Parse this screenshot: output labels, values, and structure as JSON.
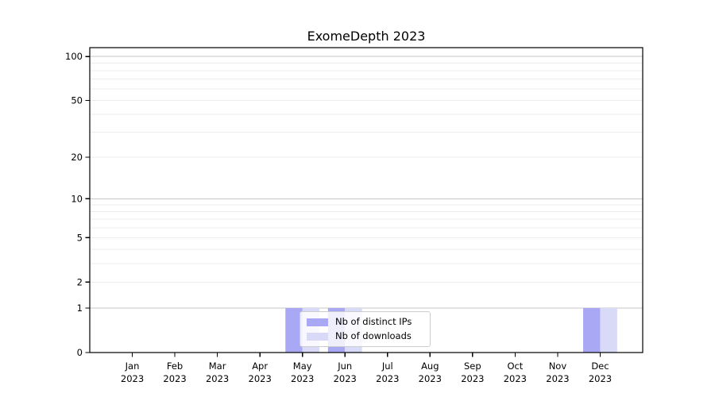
{
  "chart_data": {
    "type": "bar",
    "title": "ExomeDepth 2023",
    "categories": [
      "Jan",
      "Feb",
      "Mar",
      "Apr",
      "May",
      "Jun",
      "Jul",
      "Aug",
      "Sep",
      "Oct",
      "Nov",
      "Dec"
    ],
    "x_year_label": "2023",
    "series": [
      {
        "name": "Nb of distinct IPs",
        "color": "#a8a8f5",
        "values": [
          0,
          0,
          0,
          0,
          1,
          1,
          0,
          0,
          0,
          0,
          0,
          1
        ]
      },
      {
        "name": "Nb of downloads",
        "color": "#d9d9f8",
        "values": [
          0,
          0,
          0,
          0,
          1,
          1,
          0,
          0,
          0,
          0,
          0,
          1
        ]
      }
    ],
    "yticks": [
      0,
      1,
      2,
      5,
      10,
      20,
      50,
      100
    ],
    "minor_gridlines": [
      2,
      3,
      4,
      5,
      6,
      7,
      8,
      9,
      20,
      30,
      40,
      50,
      60,
      70,
      80,
      90
    ],
    "major_gridlines": [
      1,
      10,
      100
    ],
    "scale": "log10(v+1)",
    "ylim": [
      0,
      115
    ],
    "legend_position": "lower-center",
    "colors": {
      "minor_grid": "#ececec",
      "major_grid": "#c6c6c6",
      "axis": "#000000",
      "background": "#ffffff",
      "legend_border": "#cccccc"
    }
  }
}
